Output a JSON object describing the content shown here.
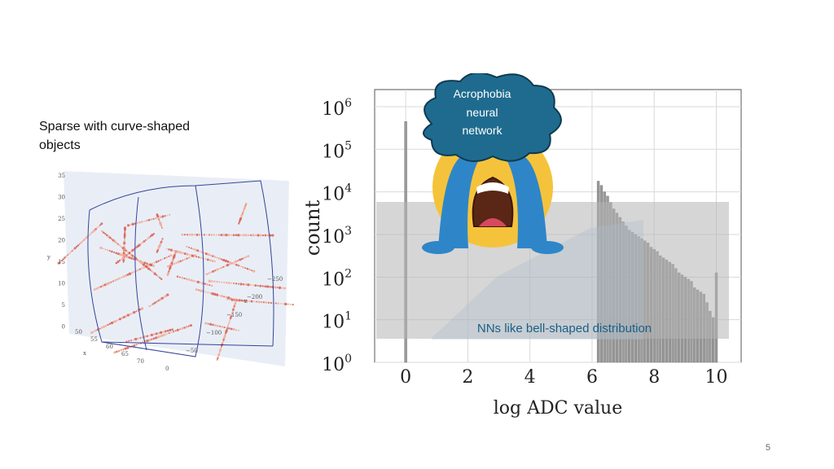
{
  "slide": {
    "caption": "Sparse with curve-shaped objects",
    "page_number": "5",
    "colors": {
      "bar": "#9a9a9a",
      "overlay": "#bcbcbc",
      "cloud": "#1f6b8f",
      "cloud_stroke": "#0d3a4f",
      "annotation": "#1a5e86",
      "emoji": "#f5c33b",
      "tears": "#2e86c8"
    }
  },
  "scatter_plot": {
    "y_ticks": [
      "35",
      "30",
      "25",
      "20",
      "15",
      "10",
      "5",
      "0"
    ],
    "y_label": "y",
    "x_ticks": [
      "50",
      "55",
      "60",
      "65",
      "70"
    ],
    "x_label": "x",
    "z_ticks": [
      "250",
      "200",
      "150",
      "100",
      "50",
      "0"
    ],
    "z_label": "z",
    "z_tick_prefix": "−"
  },
  "callout": {
    "thought_cloud": "Acrophobia neural network",
    "emoji_icon": "loudly-crying-face-icon",
    "annotation": "NNs like bell-shaped distribution"
  },
  "chart_data": {
    "type": "bar",
    "xlabel": "log ADC value",
    "ylabel": "count",
    "xlim": [
      -1,
      10.8
    ],
    "ylim_log10": [
      0,
      6.4
    ],
    "y_scale": "log",
    "x_ticks": [
      "0",
      "2",
      "4",
      "6",
      "8",
      "10"
    ],
    "y_tick_exponents": [
      "0",
      "1",
      "2",
      "3",
      "4",
      "5",
      "6"
    ],
    "y_tick_base": "10",
    "bars": {
      "x": [
        0,
        6.2,
        6.3,
        6.4,
        6.5,
        6.6,
        6.7,
        6.8,
        6.9,
        7.0,
        7.1,
        7.2,
        7.3,
        7.4,
        7.5,
        7.6,
        7.7,
        7.8,
        7.9,
        8.0,
        8.1,
        8.2,
        8.3,
        8.4,
        8.5,
        8.6,
        8.7,
        8.8,
        8.9,
        9.0,
        9.1,
        9.2,
        9.3,
        9.4,
        9.5,
        9.6,
        9.7,
        9.8,
        9.9,
        10.0
      ],
      "log10_counts": [
        5.65,
        4.25,
        4.15,
        4.0,
        3.9,
        3.75,
        3.6,
        3.5,
        3.4,
        3.3,
        3.2,
        3.1,
        3.05,
        3.0,
        2.95,
        2.9,
        2.85,
        2.8,
        2.7,
        2.65,
        2.6,
        2.5,
        2.45,
        2.4,
        2.35,
        2.3,
        2.2,
        2.1,
        2.05,
        2.0,
        1.95,
        1.9,
        1.75,
        1.7,
        1.65,
        1.6,
        1.4,
        1.2,
        1.05,
        2.1
      ]
    }
  }
}
